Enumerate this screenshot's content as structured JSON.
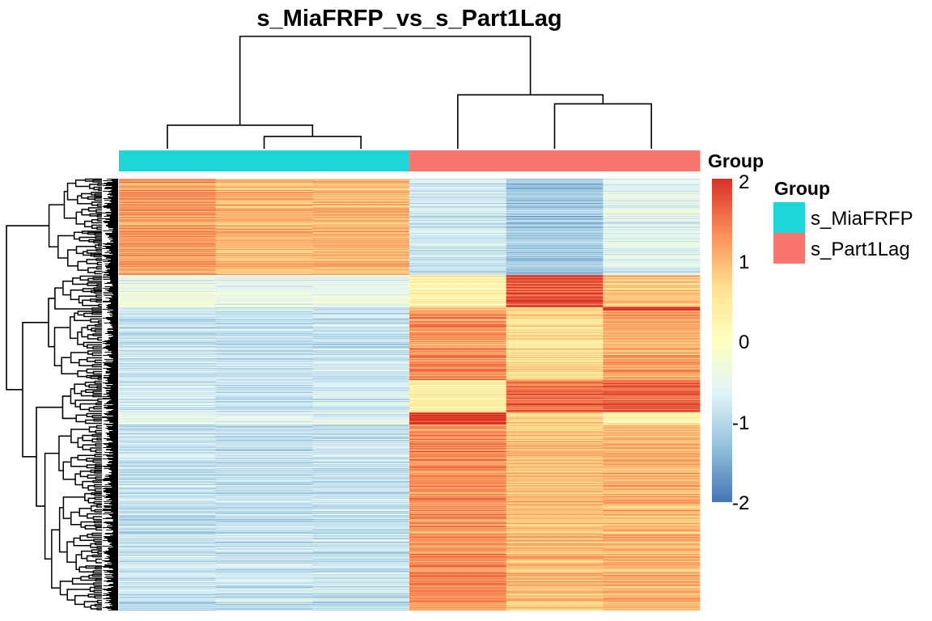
{
  "chart_data": {
    "type": "heatmap",
    "title": "s_MiaFRFP_vs_s_Part1Lag",
    "columns": [
      {
        "group": "s_MiaFRFP"
      },
      {
        "group": "s_MiaFRFP"
      },
      {
        "group": "s_MiaFRFP"
      },
      {
        "group": "s_Part1Lag"
      },
      {
        "group": "s_Part1Lag"
      },
      {
        "group": "s_Part1Lag"
      }
    ],
    "row_clusters": [
      {
        "rows": 119,
        "values": [
          1.2,
          1.0,
          1.0,
          -0.8,
          -1.2,
          -0.6
        ]
      },
      {
        "rows": 40,
        "values": [
          -0.4,
          -0.5,
          -0.5,
          0.3,
          1.8,
          0.9
        ]
      },
      {
        "rows": 4,
        "values": [
          -0.8,
          -0.8,
          -0.8,
          0.9,
          0.7,
          2.0
        ]
      },
      {
        "rows": 86,
        "values": [
          -0.9,
          -0.9,
          -0.9,
          1.3,
          0.6,
          1.1
        ]
      },
      {
        "rows": 40,
        "values": [
          -0.8,
          -0.9,
          -0.8,
          0.3,
          1.5,
          1.6
        ]
      },
      {
        "rows": 15,
        "values": [
          -0.6,
          -0.6,
          -0.6,
          2.0,
          0.8,
          0.3
        ]
      },
      {
        "rows": 230,
        "values": [
          -0.9,
          -0.9,
          -0.9,
          1.3,
          0.9,
          1.0
        ]
      }
    ],
    "column_dendrogram": {
      "merges": [
        {
          "left": 2,
          "right": 3,
          "height": 0.11
        },
        {
          "left": 1,
          "right": "2-3",
          "height": 0.21
        },
        {
          "left": 5,
          "right": 6,
          "height": 0.4
        },
        {
          "left": 4,
          "right": "5-6",
          "height": 0.48
        },
        {
          "left": "1-3",
          "right": "4-6",
          "height": 1.0
        }
      ]
    },
    "color_scale": {
      "range": [
        -2,
        2
      ],
      "colors": [
        "#4575B4",
        "#91BFDB",
        "#E0F3F8",
        "#FFFFBF",
        "#FEE090",
        "#FC8D59",
        "#D73027"
      ],
      "ticks": [
        "2",
        "1",
        "0",
        "-1",
        "-2"
      ]
    },
    "annotation": {
      "label": "Group",
      "legend_title": "Group",
      "groups": [
        {
          "name": "s_MiaFRFP",
          "color": "#1ED5D9"
        },
        {
          "name": "s_Part1Lag",
          "color": "#F8766D"
        }
      ]
    }
  }
}
